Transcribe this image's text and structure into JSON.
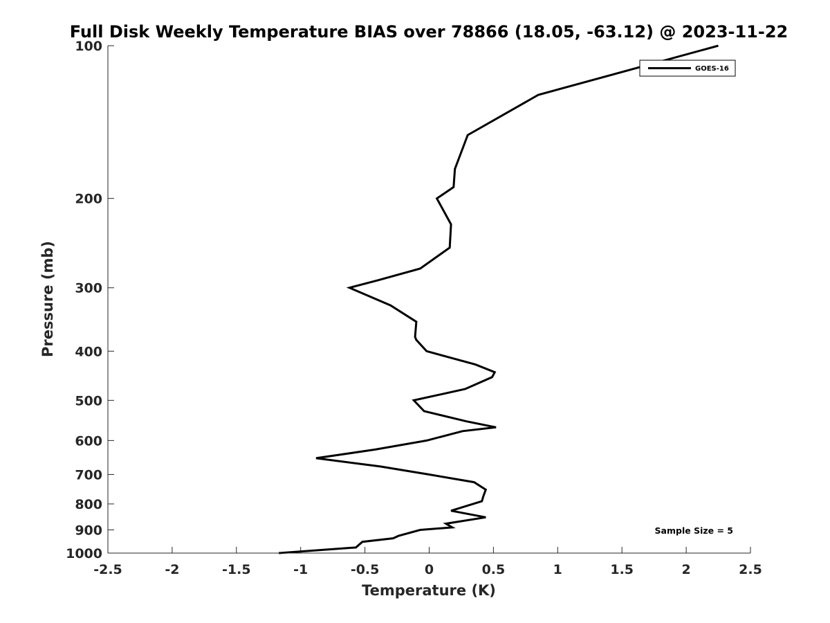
{
  "chart_data": {
    "type": "line",
    "title": "Full Disk Weekly Temperature BIAS over 78866 (18.05, -63.12) @ 2023-11-22",
    "xlabel": "Temperature (K)",
    "ylabel": "Pressure (mb)",
    "xlim": [
      -2.5,
      2.5
    ],
    "ylim": [
      1000,
      100
    ],
    "y_scale": "log",
    "x_ticks": [
      "-2.5",
      "-2",
      "-1.5",
      "-1",
      "-0.5",
      "0",
      "0.5",
      "1",
      "1.5",
      "2",
      "2.5"
    ],
    "y_ticks": [
      "100",
      "200",
      "300",
      "400",
      "500",
      "600",
      "700",
      "800",
      "900",
      "1000"
    ],
    "grid": false,
    "legend_position": "top-right",
    "series": [
      {
        "name": "GOES-16",
        "color": "#000000",
        "points": [
          [
            2.25,
            100
          ],
          [
            0.85,
            125
          ],
          [
            0.3,
            150
          ],
          [
            0.2,
            175
          ],
          [
            0.19,
            190
          ],
          [
            0.06,
            200
          ],
          [
            0.17,
            225
          ],
          [
            0.16,
            250
          ],
          [
            -0.07,
            275
          ],
          [
            -0.4,
            290
          ],
          [
            -0.62,
            300
          ],
          [
            -0.3,
            325
          ],
          [
            -0.1,
            350
          ],
          [
            -0.11,
            375
          ],
          [
            -0.1,
            380
          ],
          [
            -0.02,
            400
          ],
          [
            0.36,
            425
          ],
          [
            0.51,
            440
          ],
          [
            0.49,
            450
          ],
          [
            0.28,
            475
          ],
          [
            -0.12,
            500
          ],
          [
            -0.04,
            525
          ],
          [
            0.29,
            550
          ],
          [
            0.52,
            565
          ],
          [
            0.26,
            575
          ],
          [
            -0.02,
            600
          ],
          [
            -0.42,
            625
          ],
          [
            -0.88,
            650
          ],
          [
            -0.38,
            675
          ],
          [
            0.0,
            700
          ],
          [
            0.35,
            725
          ],
          [
            0.44,
            750
          ],
          [
            0.42,
            775
          ],
          [
            0.41,
            790
          ],
          [
            0.17,
            825
          ],
          [
            0.44,
            850
          ],
          [
            0.13,
            875
          ],
          [
            0.18,
            890
          ],
          [
            -0.07,
            900
          ],
          [
            -0.24,
            925
          ],
          [
            -0.28,
            935
          ],
          [
            -0.52,
            950
          ],
          [
            -0.57,
            975
          ],
          [
            -1.17,
            1000
          ]
        ]
      }
    ],
    "annotations": [
      {
        "text": "Sample Size = 5",
        "position": "bottom-right"
      }
    ]
  }
}
